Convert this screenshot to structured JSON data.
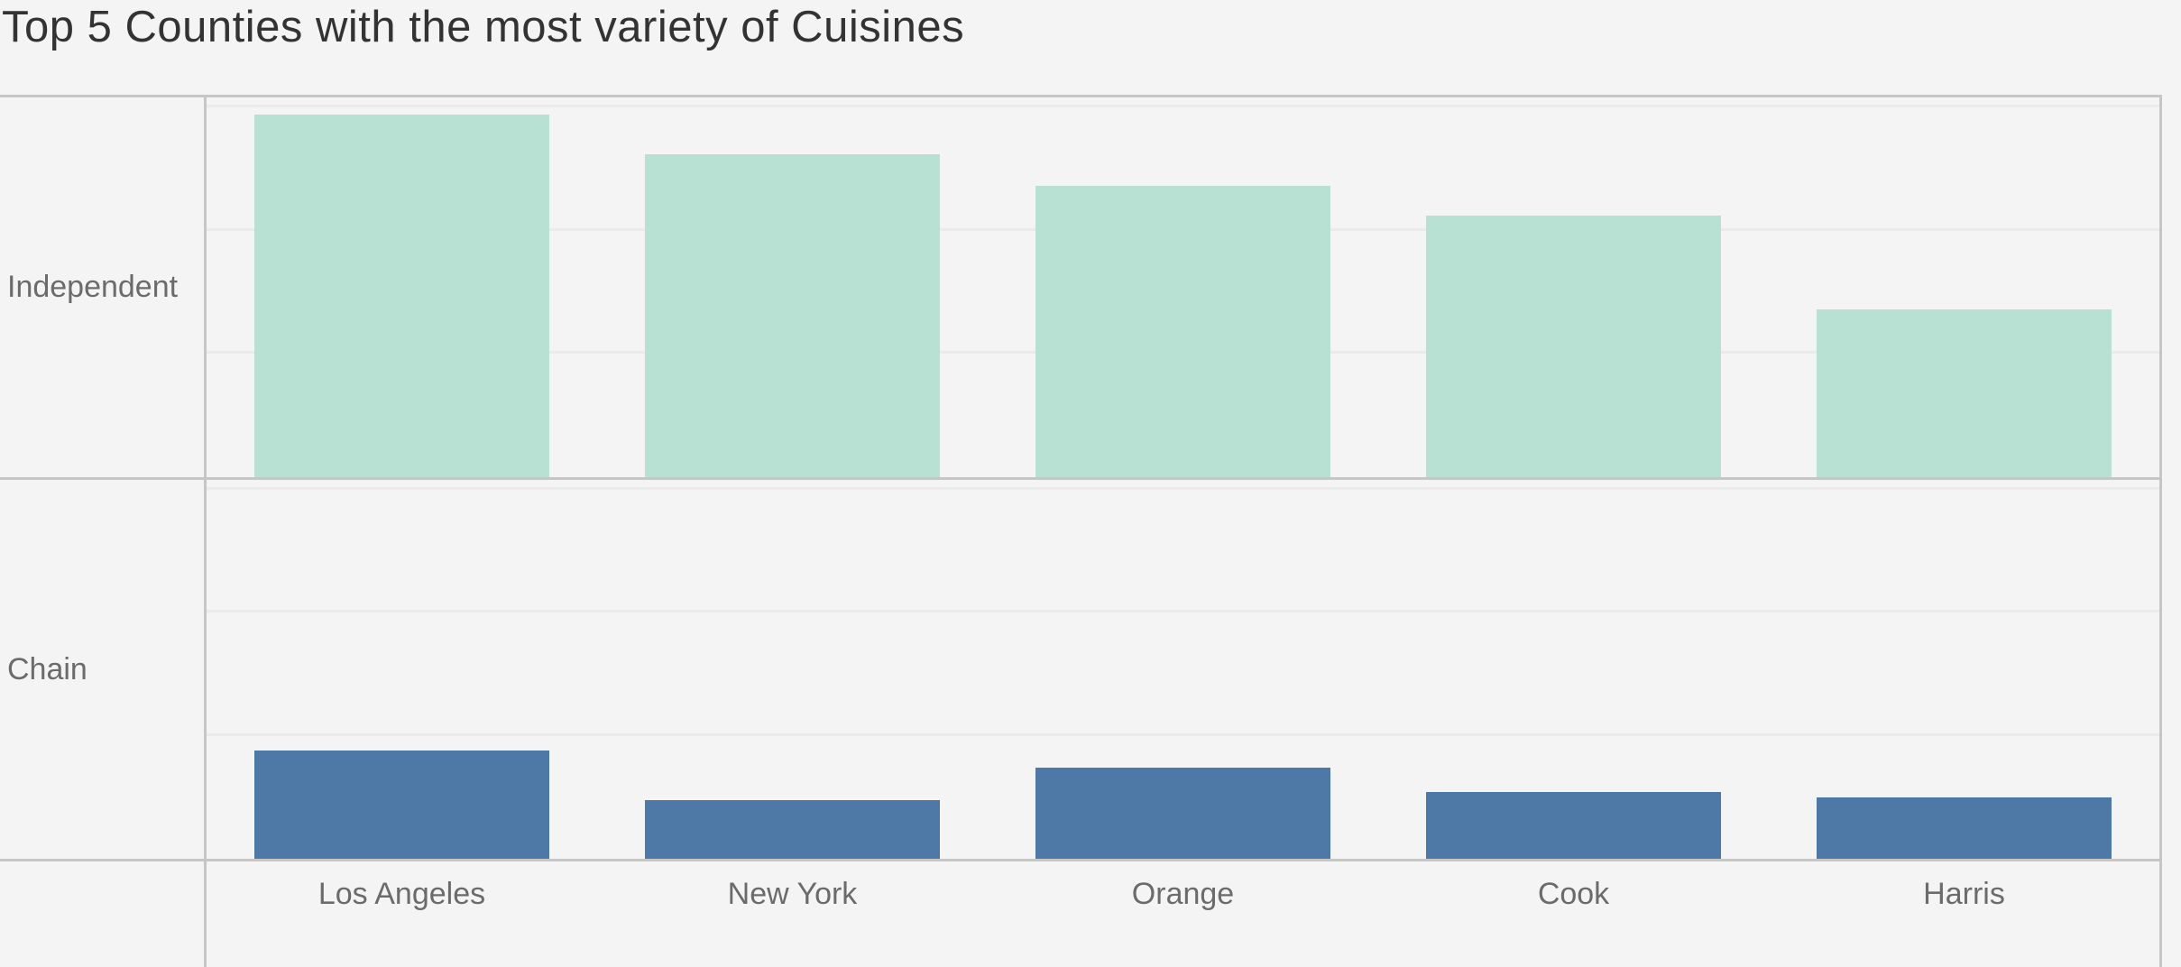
{
  "title": "Top 5 Counties with the most variety of Cuisines",
  "colors": {
    "background": "#f4f4f4",
    "border_line": "#c6c6c6",
    "gridline": "#ebebeb",
    "independent_bar": "#b8e1d3",
    "chain_bar": "#4e79a7",
    "title_text": "#333333",
    "label_text": "#6b6b6b"
  },
  "chart_data": {
    "type": "bar",
    "title": "Top 5 Counties with the most variety of Cuisines",
    "categories": [
      "Los Angeles",
      "New York",
      "Orange",
      "Cook",
      "Harris"
    ],
    "facet_rows": [
      "Independent",
      "Chain"
    ],
    "series": [
      {
        "name": "Independent",
        "color": "#b8e1d3",
        "values": [
          147,
          131,
          118,
          106,
          68
        ]
      },
      {
        "name": "Chain",
        "color": "#4e79a7",
        "values": [
          44,
          24,
          37,
          27,
          25
        ]
      }
    ],
    "value_axis": {
      "visible": false,
      "row_max": 154,
      "gridline_values": [
        50,
        100,
        150
      ],
      "note": "no numeric axis shown; values estimated from unlabeled faint gridlines assuming an interval of 50"
    },
    "xlabel": "",
    "ylabel": "",
    "legend": "none",
    "grid": "faint horizontal gridlines per row"
  }
}
